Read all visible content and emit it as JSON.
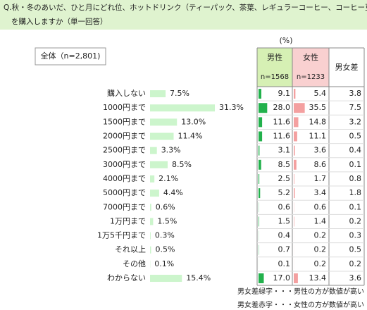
{
  "header": {
    "question_line1": "Q.秋・冬のあいだ、ひと月にどれ位、ホットドリンク（ティーパック、茶葉、レギュラーコーヒー、コーヒー豆などを含む）",
    "question_line2": "を購入しますか（単一回答）"
  },
  "overall_label": "全体（n=2,801)",
  "unit": "(%)",
  "columns": {
    "male": "男性",
    "male_n": "n=1568",
    "female": "女性",
    "female_n": "n=1233",
    "diff": "男女差"
  },
  "categories": [
    "購入しない",
    "1000円まで",
    "1500円まで",
    "2000円まで",
    "2500円まで",
    "3000円まで",
    "4000円まで",
    "5000円まで",
    "7000円まで",
    "1万円まで",
    "1万5千円まで",
    "それ以上",
    "その他",
    "わからない"
  ],
  "total": [
    7.5,
    31.3,
    13.0,
    11.4,
    3.3,
    8.5,
    2.1,
    4.4,
    0.6,
    1.5,
    0.3,
    0.5,
    0.1,
    15.4
  ],
  "total_labels": [
    "7.5%",
    "31.3%",
    "13.0%",
    "11.4%",
    "3.3%",
    "8.5%",
    "2.1%",
    "4.4%",
    "0.6%",
    "1.5%",
    "0.3%",
    "0.5%",
    "0.1%",
    "15.4%"
  ],
  "male": [
    9.1,
    28.0,
    11.6,
    11.6,
    3.1,
    8.5,
    2.5,
    5.2,
    0.6,
    1.5,
    0.4,
    0.7,
    0.1,
    17.0
  ],
  "male_labels": [
    "9.1",
    "28.0",
    "11.6",
    "11.6",
    "3.1",
    "8.5",
    "2.5",
    "5.2",
    "0.6",
    "1.5",
    "0.4",
    "0.7",
    "0.1",
    "17.0"
  ],
  "female": [
    5.4,
    35.5,
    14.8,
    11.1,
    3.6,
    8.6,
    1.7,
    3.4,
    0.6,
    1.4,
    0.2,
    0.2,
    0.2,
    13.4
  ],
  "diff": [
    3.8,
    7.5,
    3.2,
    0.5,
    0.4,
    0.1,
    0.8,
    1.8,
    0.1,
    0.2,
    0.3,
    0.5,
    0.2,
    3.6
  ],
  "diff_colors": [
    "#2e9e4f",
    "#e02020",
    "#e02020",
    "#2e9e4f",
    "#e02020",
    "#e02020",
    "#2e9e4f",
    "#2e9e4f",
    "#2e9e4f",
    "#2e9e4f",
    "#2e9e4f",
    "#2e9e4f",
    "#e02020",
    "#2e9e4f"
  ],
  "colors": {
    "total": "#ccf5cc",
    "male": "#22b14c",
    "female": "#f4a0a0"
  },
  "notes": [
    {
      "text": "男女差緑字・・・男性の方が数値が高い",
      "color": "#2e9e4f"
    },
    {
      "text": "男女差赤字・・・女性の方が数値が高い",
      "color": "#e02020"
    }
  ]
}
